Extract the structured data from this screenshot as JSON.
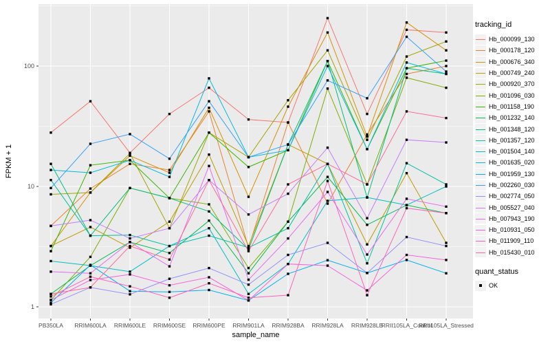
{
  "chart_data": {
    "type": "line",
    "title": "",
    "xlabel": "sample_name",
    "ylabel": "FPKM + 1",
    "x_categories": [
      "PB350LA",
      "RRIM600LA",
      "RRIM600LE",
      "RRIM600SE",
      "RRIM600PE",
      "RRIM901LA",
      "RRIM928BA",
      "RRIM928LA",
      "RRIM928LB",
      "RRII105LA_Control",
      "RRII105LA_Stressed"
    ],
    "y_scale": "log10",
    "y_ticks": [
      1,
      10,
      100
    ],
    "y_tick_labels": [
      "1",
      "10",
      "100"
    ],
    "y_minor_ticks": [
      3.1623,
      31.623,
      316.23
    ],
    "ylim": [
      0.93,
      380
    ],
    "grid": "white major+minor gridlines on gray panel",
    "legend_position": "right",
    "legend_title": "tracking_id",
    "quant_legend": {
      "title": "quant_status",
      "items": [
        {
          "label": "OK",
          "marker": "black-square"
        }
      ]
    },
    "point_marker": "black-square",
    "series": [
      {
        "name": "Hb_000099_130",
        "color": "#F8766D",
        "values": [
          28,
          51,
          19,
          40,
          66,
          36,
          34,
          250,
          40,
          200,
          190
        ]
      },
      {
        "name": "Hb_000178_120",
        "color": "#EA8331",
        "values": [
          4.7,
          9.6,
          15.4,
          13.7,
          42,
          3.1,
          34,
          7.2,
          27,
          86,
          100
        ]
      },
      {
        "name": "Hb_000676_340",
        "color": "#D89000",
        "values": [
          3.2,
          8.9,
          18,
          13,
          45,
          8.2,
          46,
          190,
          26,
          230,
          135
        ]
      },
      {
        "name": "Hb_000749_240",
        "color": "#C09B00",
        "values": [
          3.2,
          4.6,
          3.1,
          5.1,
          18.4,
          3.2,
          22.3,
          15.4,
          3.3,
          12.9,
          3.4
        ]
      },
      {
        "name": "Hb_000920_370",
        "color": "#A3A500",
        "values": [
          8.6,
          8.9,
          18.8,
          4.5,
          28,
          17.5,
          52,
          135,
          24.4,
          120,
          160
        ]
      },
      {
        "name": "Hb_001096_030",
        "color": "#7CAE00",
        "values": [
          1.14,
          2.6,
          9.7,
          8.0,
          7.1,
          2.1,
          5.1,
          65,
          10.4,
          80,
          66
        ]
      },
      {
        "name": "Hb_001158_190",
        "color": "#39B600",
        "values": [
          2.9,
          15.0,
          16.5,
          8.0,
          28,
          14.5,
          20,
          110,
          20.4,
          96,
          111
        ]
      },
      {
        "name": "Hb_001232_140",
        "color": "#00BB4E",
        "values": [
          1.28,
          2.2,
          3.45,
          2.8,
          5.2,
          1.9,
          5.1,
          12,
          4.8,
          7.0,
          6.0
        ]
      },
      {
        "name": "Hb_001348_120",
        "color": "#00BF7D",
        "values": [
          15.4,
          3.9,
          9.7,
          8.0,
          6.2,
          3.0,
          22.3,
          110,
          8.1,
          96,
          86
        ]
      },
      {
        "name": "Hb_001357_120",
        "color": "#00C1A3",
        "values": [
          11.3,
          3.9,
          3.95,
          3.2,
          3.9,
          3.1,
          4.5,
          15.4,
          2.3,
          15.6,
          10.4
        ]
      },
      {
        "name": "Hb_001504_140",
        "color": "#00BFC4",
        "values": [
          2.4,
          2.2,
          1.96,
          3.2,
          4.5,
          1.28,
          2.27,
          7.6,
          8.1,
          7.0,
          10.0
        ]
      },
      {
        "name": "Hb_001635_020",
        "color": "#00BAE0",
        "values": [
          13.7,
          13,
          16.5,
          12,
          79,
          17.5,
          20,
          100,
          20.4,
          107,
          86
        ]
      },
      {
        "name": "Hb_001959_130",
        "color": "#00B0F6",
        "values": [
          1.08,
          2.23,
          1.35,
          1.33,
          1.38,
          1.13,
          1.88,
          2.44,
          1.91,
          2.45,
          1.9
        ]
      },
      {
        "name": "Hb_002260_030",
        "color": "#35A2FF",
        "values": [
          9.7,
          22.6,
          27.2,
          17,
          51,
          17.5,
          22.3,
          76,
          54,
          175,
          90
        ]
      },
      {
        "name": "Hb_002774_050",
        "color": "#9590FF",
        "values": [
          1.05,
          1.45,
          1.27,
          1.71,
          2.1,
          1.53,
          2.7,
          3.4,
          1.91,
          3.8,
          3.2
        ]
      },
      {
        "name": "Hb_005527_040",
        "color": "#C77CFF",
        "values": [
          4.7,
          5.25,
          3.7,
          4.5,
          11.3,
          5.85,
          8.7,
          21,
          5.45,
          24.4,
          23.2
        ]
      },
      {
        "name": "Hb_007943_190",
        "color": "#E76BF3",
        "values": [
          1.96,
          1.9,
          3.45,
          2.17,
          14.8,
          1.68,
          3.7,
          9.0,
          2.72,
          7.9,
          6.8
        ]
      },
      {
        "name": "Hb_010931_050",
        "color": "#FA62DB",
        "values": [
          1.14,
          1.67,
          1.86,
          1.51,
          1.76,
          1.13,
          2.27,
          2.2,
          1.37,
          2.7,
          2.45
        ]
      },
      {
        "name": "Hb_011909_110",
        "color": "#FF62BC",
        "values": [
          1.22,
          1.78,
          1.48,
          1.19,
          1.57,
          1.19,
          1.25,
          11.1,
          1.25,
          6.6,
          6.0
        ]
      },
      {
        "name": "Hb_015430_010",
        "color": "#FF6A98",
        "values": [
          1.28,
          1.45,
          3.2,
          2.47,
          11.3,
          2.9,
          10.4,
          15.4,
          10.4,
          42,
          37
        ]
      }
    ],
    "panel_color": "#EBEBEB",
    "gridline_color": "#FFFFFF",
    "axis_text_color": "#4D4D4D",
    "point_color": "#000000"
  }
}
